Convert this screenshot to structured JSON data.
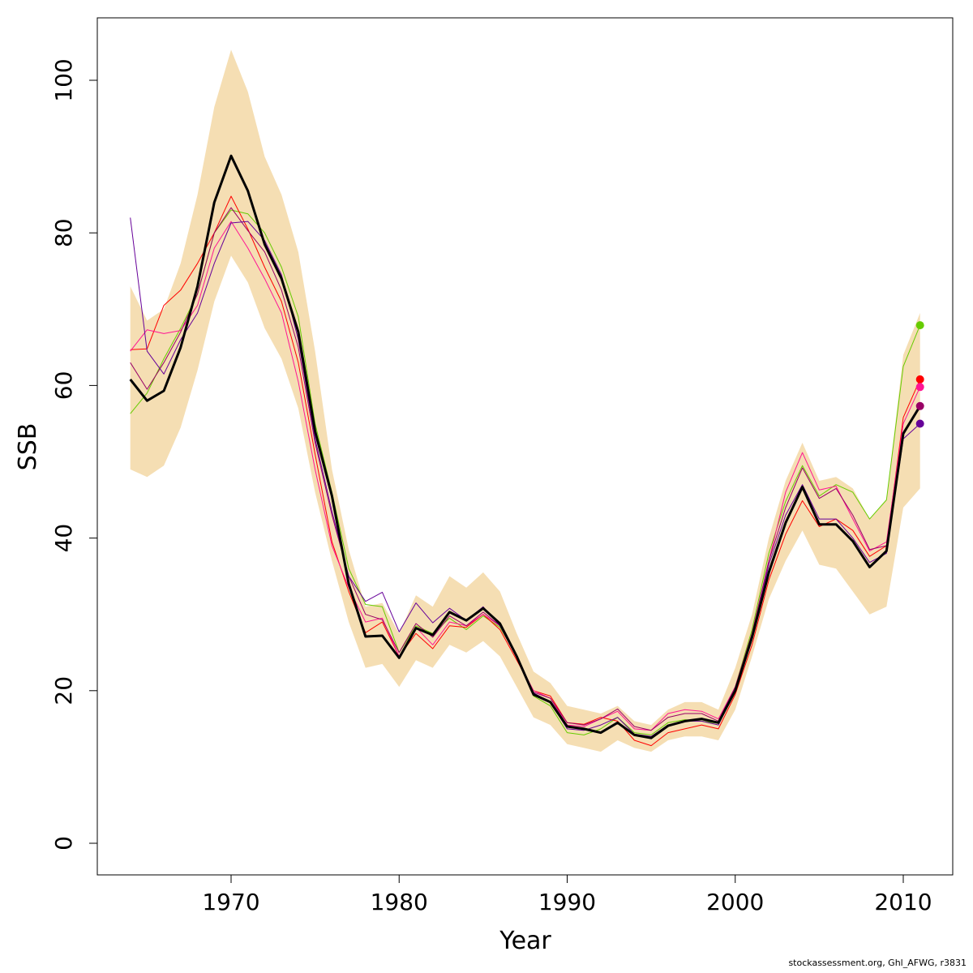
{
  "chart_data": {
    "type": "line",
    "xlabel": "Year",
    "ylabel": "SSB",
    "xlim": [
      1962,
      2013
    ],
    "ylim": [
      -4,
      108
    ],
    "x_ticks": [
      1970,
      1980,
      1990,
      2000,
      2010
    ],
    "y_ticks": [
      0,
      20,
      40,
      60,
      80,
      100
    ],
    "grid": false,
    "x": [
      1964,
      1965,
      1966,
      1967,
      1968,
      1969,
      1970,
      1971,
      1972,
      1973,
      1974,
      1975,
      1976,
      1977,
      1978,
      1979,
      1980,
      1981,
      1982,
      1983,
      1984,
      1985,
      1986,
      1987,
      1988,
      1989,
      1990,
      1991,
      1992,
      1993,
      1994,
      1995,
      1996,
      1997,
      1998,
      1999,
      2000,
      2001,
      2002,
      2003,
      2004,
      2005,
      2006,
      2007,
      2008,
      2009,
      2010,
      2011
    ],
    "band": {
      "color": "#f5deb3",
      "upper": [
        73,
        68.5,
        70,
        76,
        85,
        96.5,
        104,
        98.5,
        90,
        85,
        77.5,
        64.5,
        49,
        38.5,
        31,
        31.5,
        27.5,
        32.5,
        31,
        35,
        33.5,
        35.5,
        33,
        27.5,
        22.5,
        21,
        18,
        17.5,
        17,
        18,
        16,
        15.5,
        17.5,
        18.5,
        18.5,
        17.5,
        23,
        30,
        40,
        47.5,
        52.5,
        47.5,
        48,
        46.5,
        42.5,
        45,
        64,
        69.5
      ],
      "lower": [
        49,
        48,
        49.5,
        54.5,
        62,
        71,
        77,
        73.5,
        67.5,
        63.5,
        57,
        46,
        37,
        29,
        23,
        23.5,
        20.5,
        24,
        23,
        26,
        25,
        26.5,
        24.5,
        20.5,
        16.5,
        15.5,
        13,
        12.5,
        12,
        13.5,
        12.5,
        12,
        13.5,
        14,
        14,
        13.5,
        17.5,
        24.5,
        32,
        37,
        41,
        36.5,
        36,
        33,
        30,
        31,
        44,
        46.5
      ]
    },
    "series": [
      {
        "color": "#000000",
        "width": 3,
        "values": [
          60.8,
          58,
          59.3,
          65,
          73,
          84,
          90.1,
          85.5,
          78.5,
          74,
          67,
          54,
          45.5,
          34,
          27.1,
          27.2,
          24.3,
          28.2,
          27.3,
          30.3,
          29.2,
          30.8,
          28.8,
          24.5,
          19.5,
          18.5,
          15.3,
          15,
          14.5,
          15.8,
          14.2,
          13.8,
          15.4,
          16,
          16.3,
          15.8,
          20,
          27,
          35.5,
          42,
          46.7,
          41.8,
          41.8,
          39.6,
          36.2,
          38.3,
          53.7,
          57.3
        ]
      },
      {
        "color": "#66cc00",
        "width": 1,
        "values": [
          56.3,
          59,
          63.5,
          67.5,
          72,
          80,
          83,
          82.5,
          80,
          75.5,
          69,
          55,
          46,
          36,
          31.3,
          31,
          25,
          28.5,
          27.5,
          29.5,
          28,
          29.8,
          28.3,
          24.5,
          19.3,
          18,
          14.5,
          14.2,
          15,
          16.5,
          14.5,
          14.2,
          15.8,
          16.2,
          16,
          15.7,
          20.5,
          28,
          38,
          44.8,
          49.5,
          45.5,
          47,
          46,
          42.5,
          45,
          62.5,
          67.9
        ]
      },
      {
        "color": "#ff0000",
        "width": 1,
        "values": [
          64.7,
          64.8,
          70.5,
          72.5,
          76,
          80,
          84.8,
          80.5,
          75.5,
          71,
          63,
          51,
          39.5,
          33,
          27.6,
          29,
          24.5,
          27.5,
          25.5,
          28.5,
          28.3,
          30,
          28,
          24,
          20,
          19.3,
          15.8,
          15.6,
          16.5,
          16,
          13.5,
          12.8,
          14.5,
          15,
          15.5,
          15,
          19.5,
          26,
          34.5,
          40.5,
          44.9,
          41.5,
          42.5,
          41,
          37.6,
          39,
          55.8,
          60.8
        ]
      },
      {
        "color": "#ff1493",
        "width": 1,
        "values": [
          64.5,
          67.3,
          66.8,
          67.2,
          70.5,
          78,
          81.5,
          78,
          74,
          69.5,
          60.5,
          49,
          39,
          33.5,
          29,
          29.5,
          24.5,
          28.3,
          26,
          29,
          28.5,
          30,
          28.5,
          24.3,
          20,
          19,
          15.5,
          15.3,
          16.3,
          17.3,
          15,
          14.8,
          17,
          17.5,
          17.3,
          16.3,
          20.5,
          27.5,
          37,
          46,
          51.2,
          46.3,
          46.8,
          42.5,
          38.3,
          39.5,
          55,
          59.8
        ]
      },
      {
        "color": "#990066",
        "width": 1,
        "values": [
          63,
          59.5,
          63,
          67,
          72,
          80,
          83.3,
          80.3,
          77.5,
          72.5,
          65,
          52.5,
          43,
          35,
          30,
          29.3,
          25,
          28.8,
          27,
          29.8,
          28.5,
          30.3,
          28.5,
          24.3,
          19.8,
          19,
          15.8,
          15.5,
          16.3,
          17.6,
          15.3,
          14.8,
          16.5,
          17,
          17,
          16,
          20.5,
          27.5,
          37,
          44,
          49.2,
          45.2,
          46.5,
          43,
          38.5,
          39,
          53.5,
          57.3
        ]
      },
      {
        "color": "#660099",
        "width": 1,
        "values": [
          82,
          64.5,
          61.5,
          66,
          69.5,
          76,
          81.3,
          81.5,
          79,
          74.5,
          66,
          53,
          43.5,
          35,
          31.7,
          32.9,
          27.7,
          31.5,
          28.9,
          30.8,
          29.2,
          31,
          28.5,
          24.5,
          19.7,
          18.5,
          15,
          14.8,
          15.5,
          16.5,
          14.3,
          14,
          15.5,
          16,
          16,
          15.5,
          20,
          27,
          36.5,
          43,
          47,
          42.5,
          42.5,
          40,
          36.8,
          38,
          53,
          55
        ]
      }
    ],
    "end_markers": [
      {
        "x": 2011,
        "y": 67.9,
        "color": "#66cc00"
      },
      {
        "x": 2011,
        "y": 60.8,
        "color": "#ff0000"
      },
      {
        "x": 2011,
        "y": 59.8,
        "color": "#ff1493"
      },
      {
        "x": 2011,
        "y": 57.3,
        "color": "#990066"
      },
      {
        "x": 2011,
        "y": 55.0,
        "color": "#660099"
      }
    ]
  },
  "footer": "stockassessment.org, Ghl_AFWG, r3831"
}
